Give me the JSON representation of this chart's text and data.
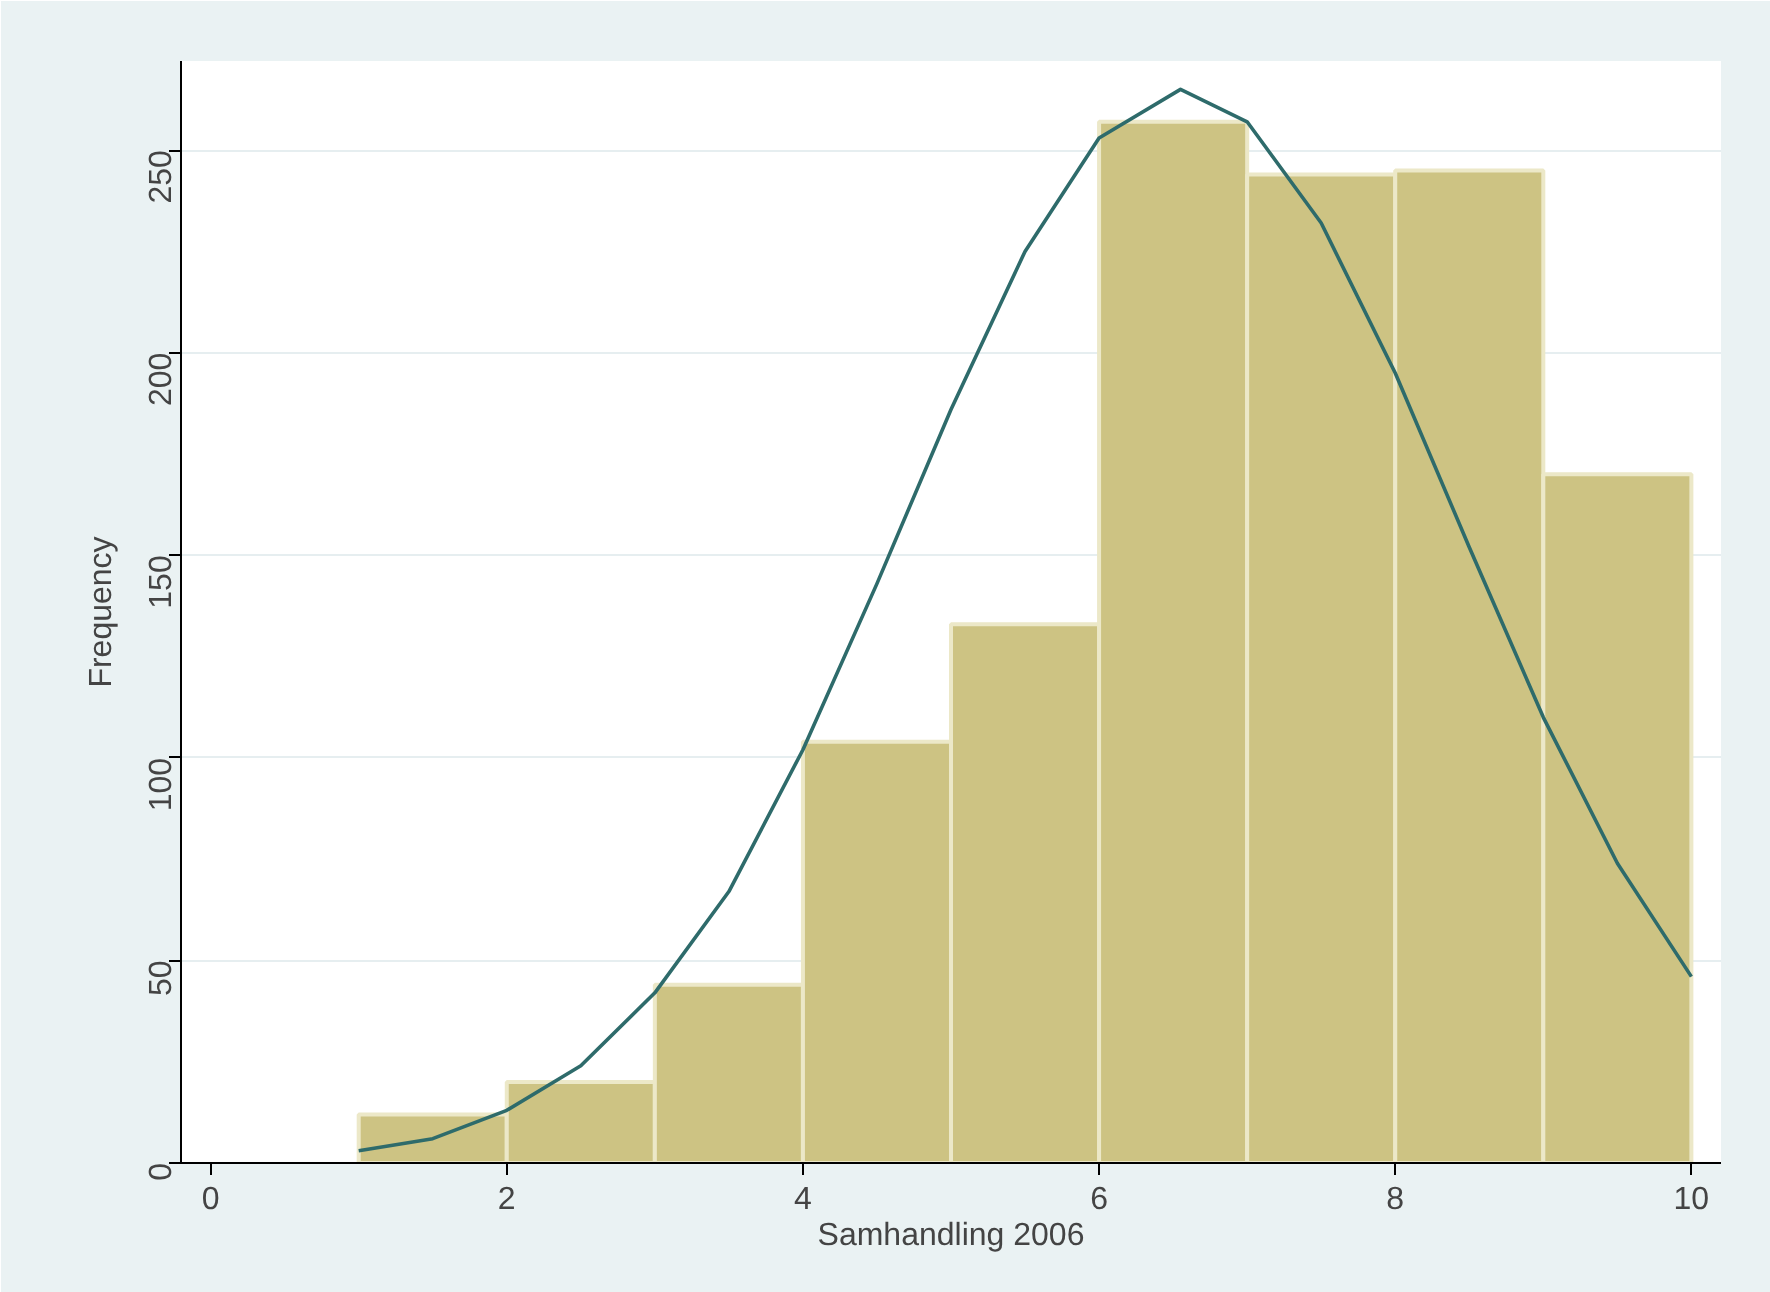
{
  "chart_data": {
    "type": "histogram",
    "xlabel": "Samhandling 2006",
    "ylabel": "Frequency",
    "bins": [
      1,
      2,
      3,
      4,
      5,
      6,
      7,
      8,
      9,
      10
    ],
    "values": [
      12,
      20,
      44,
      104,
      133,
      257,
      244,
      245,
      170
    ],
    "color": "#cdc383",
    "series": [
      {
        "type": "line",
        "color": "#2e6b6b",
        "x": [
          1,
          1.5,
          2,
          2.5,
          3,
          3.5,
          4,
          4.5,
          5,
          5.5,
          6,
          6.55,
          7,
          7.5,
          8,
          8.5,
          9,
          9.5,
          10
        ],
        "values": [
          3,
          6,
          13,
          24,
          42,
          67,
          102,
          143,
          186,
          225,
          253,
          265,
          257,
          232,
          195,
          152,
          110,
          74,
          46
        ]
      }
    ],
    "xlim": [
      -0.2,
      10.2
    ],
    "ylim": [
      0,
      272
    ],
    "xticks": [
      0,
      2,
      4,
      6,
      8,
      10
    ],
    "yticks": [
      0,
      50,
      100,
      150,
      200,
      250
    ],
    "grid": "y"
  }
}
